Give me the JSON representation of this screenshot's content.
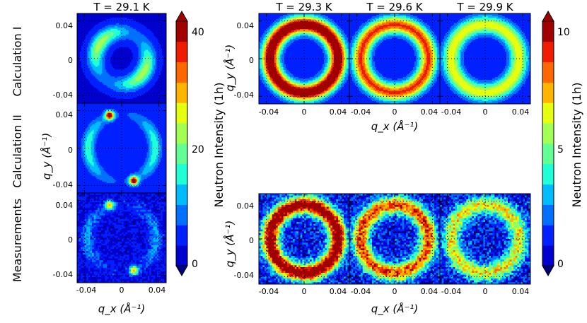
{
  "figure": {
    "row_labels": [
      "Calculation I",
      "Calculation II",
      "Measurements"
    ],
    "colors": {
      "cmap": [
        "#00007f",
        "#0000cf",
        "#0020ff",
        "#0070ff",
        "#00bcff",
        "#20ffd6",
        "#62ff94",
        "#a2ff54",
        "#e6ff10",
        "#ffb400",
        "#ff6800",
        "#f01c00",
        "#a00000"
      ]
    }
  },
  "chart_data": [
    {
      "type": "heatmap",
      "id": "left",
      "title": "T = 29.1 K",
      "panels": [
        {
          "row": "Calculation I",
          "pattern": "ring_pinwheel",
          "ring_radius": 0.028,
          "peak_intensity": 22
        },
        {
          "row": "Calculation II",
          "pattern": "ring_two_spots",
          "ring_radius": 0.036,
          "peak_intensity": 40
        },
        {
          "row": "Measurements",
          "pattern": "noisy_ring_two_spots",
          "ring_radius": 0.037,
          "peak_intensity": 40
        }
      ],
      "xlabel": "q_x (Å⁻¹)",
      "ylabel": "q_y (Å⁻¹)",
      "xlim": [
        -0.048,
        0.048
      ],
      "ylim": [
        -0.048,
        0.048
      ],
      "xticks": [
        "-0.04",
        "0",
        "0.04"
      ],
      "yticks": [
        "0.04",
        "0",
        "-0.04"
      ],
      "grid": true,
      "colorbar": {
        "label": "Neutron Intensity (1h)",
        "range": [
          0,
          40
        ],
        "ticks": [
          "40",
          "20",
          "0"
        ]
      }
    },
    {
      "type": "heatmap",
      "id": "right",
      "titles": [
        "T = 29.3 K",
        "T = 29.6 K",
        "T = 29.9 K"
      ],
      "temperatures_K": [
        29.3,
        29.6,
        29.9
      ],
      "rows": [
        "Calculation",
        "Measurements"
      ],
      "ring_radius": 0.036,
      "ring_peak_intensity": [
        10,
        7.5,
        5.5
      ],
      "xlabel": "q_x (Å⁻¹)",
      "ylabel": "q_y (Å⁻¹)",
      "xlim": [
        -0.048,
        0.048
      ],
      "ylim": [
        -0.048,
        0.048
      ],
      "xticks": [
        "-0.04",
        "0",
        "0.04"
      ],
      "yticks": [
        "0.04",
        "0",
        "-0.04"
      ],
      "grid": true,
      "colorbar": {
        "label": "Neutron Intensity (1h)",
        "range": [
          0,
          10
        ],
        "ticks": [
          "10",
          "5",
          "0"
        ]
      }
    }
  ]
}
